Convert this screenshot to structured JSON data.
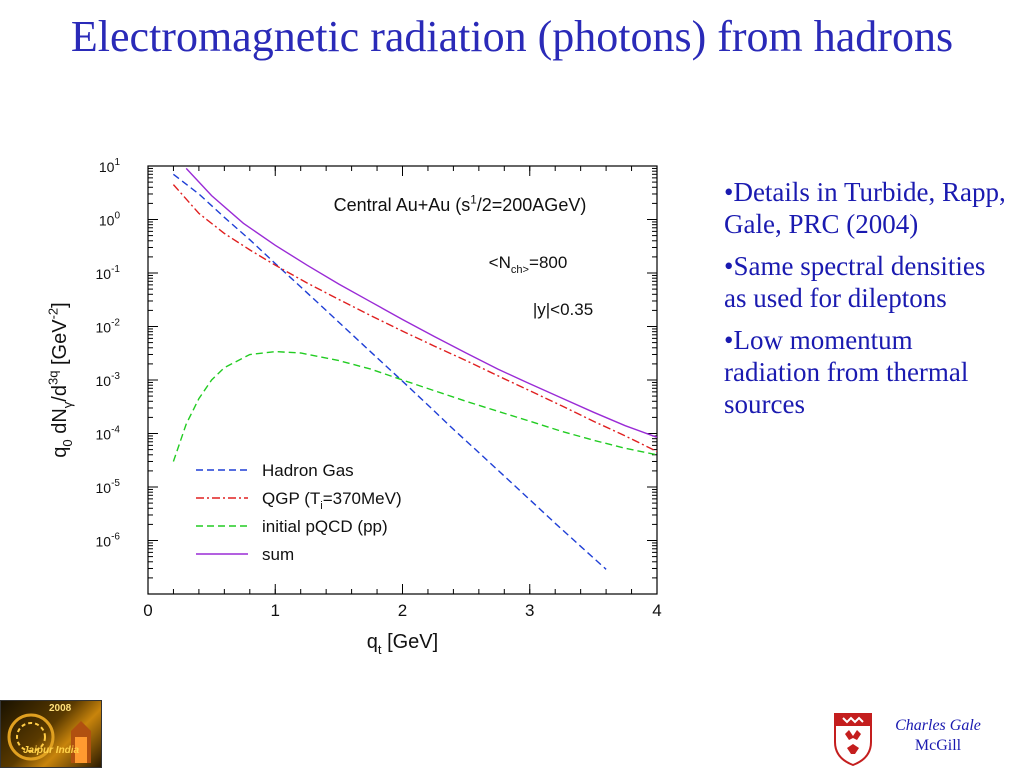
{
  "slide": {
    "title": "Electromagnetic radiation (photons) from hadrons",
    "bullets": [
      "•Details in Turbide, Rapp, Gale, PRC (2004)",
      "•Same spectral densities as used for dileptons",
      "•Low momentum radiation from thermal sources"
    ],
    "credit_name": "Charles Gale",
    "credit_affiliation": "McGill",
    "left_logo_year": "2008",
    "left_logo_city": "Jaipur India"
  },
  "chart_data": {
    "type": "line",
    "xlabel": "q_t [GeV]",
    "ylabel": "q_0 dN_γ/d^3q [GeV^-2]",
    "xlim": [
      0,
      4
    ],
    "ylim_log10": [
      -7,
      1
    ],
    "x_ticks": [
      "0",
      "1",
      "2",
      "3",
      "4"
    ],
    "y_ticks": [
      "10^1",
      "10^0",
      "10^-1",
      "10^-2",
      "10^-3",
      "10^-4",
      "10^-5",
      "10^-6"
    ],
    "annotations": [
      "Central Au+Au (s^1/2=200AGeV)",
      "<N_ch>=800",
      "|y|<0.35"
    ],
    "legend_position": "bottom-left",
    "series": [
      {
        "name": "Hadron Gas",
        "style": "dashed",
        "color": "#1f3fd6",
        "x": [
          0.2,
          0.4,
          0.6,
          0.8,
          1.0,
          1.2,
          1.4,
          1.6,
          1.8,
          2.0,
          2.2,
          2.4,
          2.6,
          2.8,
          3.0,
          3.2,
          3.4,
          3.6
        ],
        "y": [
          7.0,
          3.0,
          1.1,
          0.42,
          0.15,
          0.055,
          0.02,
          0.0072,
          0.0026,
          0.00095,
          0.00034,
          0.00012,
          4.4e-05,
          1.6e-05,
          5.8e-06,
          2.1e-06,
          7.8e-07,
          2.9e-07
        ]
      },
      {
        "name": "QGP (T_i=370MeV)",
        "style": "dashdot",
        "color": "#e02020",
        "x": [
          0.2,
          0.4,
          0.6,
          0.8,
          1.0,
          1.25,
          1.5,
          1.75,
          2.0,
          2.25,
          2.5,
          2.75,
          3.0,
          3.25,
          3.5,
          3.75,
          4.0
        ],
        "y": [
          4.5,
          1.3,
          0.55,
          0.27,
          0.14,
          0.065,
          0.032,
          0.016,
          0.0082,
          0.0043,
          0.0023,
          0.0012,
          0.00063,
          0.00033,
          0.00017,
          9e-05,
          4.6e-05
        ]
      },
      {
        "name": "initial pQCD (pp)",
        "style": "dashed",
        "color": "#22cc22",
        "x": [
          0.2,
          0.3,
          0.4,
          0.5,
          0.6,
          0.8,
          1.0,
          1.2,
          1.5,
          1.75,
          2.0,
          2.25,
          2.5,
          2.75,
          3.0,
          3.25,
          3.5,
          3.75,
          4.0
        ],
        "y": [
          3e-05,
          0.00015,
          0.00045,
          0.001,
          0.0017,
          0.003,
          0.0034,
          0.0032,
          0.0023,
          0.0016,
          0.001,
          0.00063,
          0.0004,
          0.00026,
          0.00017,
          0.00011,
          7.5e-05,
          5.3e-05,
          4e-05
        ]
      },
      {
        "name": "sum",
        "style": "solid",
        "color": "#9a2bd6",
        "x": [
          0.3,
          0.5,
          0.75,
          1.0,
          1.25,
          1.5,
          1.75,
          2.0,
          2.25,
          2.5,
          2.75,
          3.0,
          3.25,
          3.5,
          3.75,
          4.0
        ],
        "y": [
          9.0,
          2.8,
          0.85,
          0.33,
          0.14,
          0.062,
          0.029,
          0.0135,
          0.0065,
          0.0032,
          0.0016,
          0.00085,
          0.00046,
          0.00025,
          0.00014,
          8.5e-05
        ]
      }
    ]
  }
}
